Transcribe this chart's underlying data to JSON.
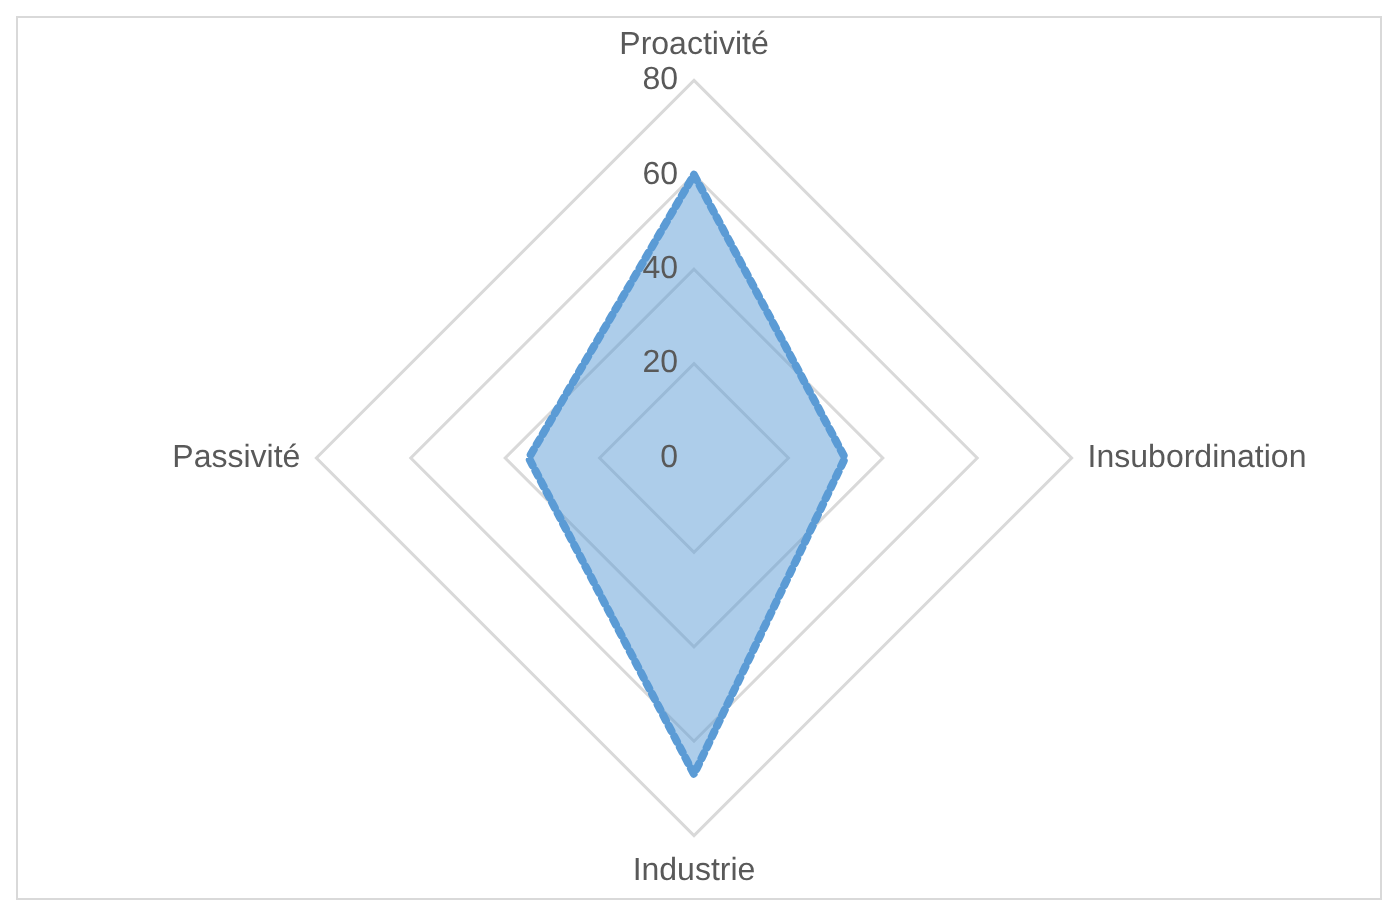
{
  "chart_data": {
    "type": "radar",
    "categories": [
      "Proactivité",
      "Insubordination",
      "Industrie",
      "Passivité"
    ],
    "series": [
      {
        "color": "#5b9bd5",
        "values": [
          60,
          32,
          67,
          35
        ]
      }
    ],
    "ylim": [
      0,
      80
    ],
    "yticks": [
      0,
      20,
      40,
      60,
      80
    ],
    "grid": true,
    "legend": false,
    "marker": "none",
    "line_style": "dotted"
  }
}
